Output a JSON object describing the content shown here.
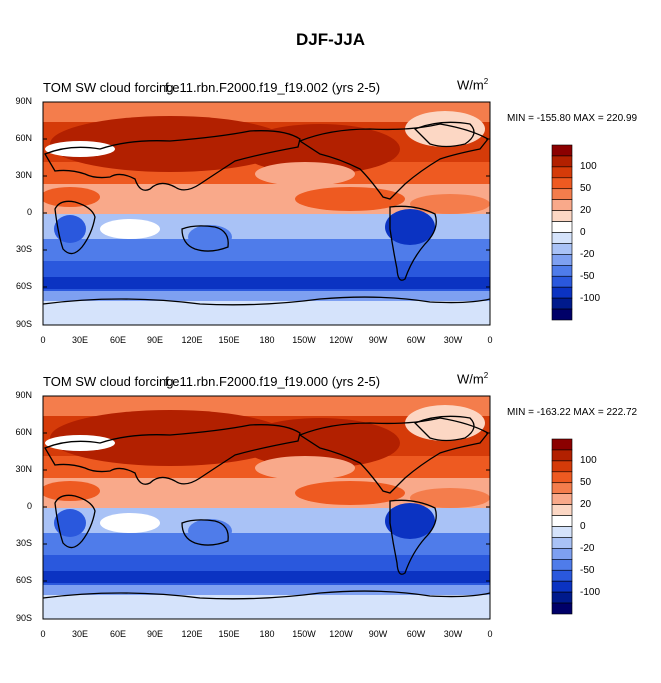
{
  "figure": {
    "title": "DJF-JJA"
  },
  "panels": [
    {
      "left_title": "TOM SW cloud forcing",
      "center_title": "f.e11.rbn.F2000.f19_f19.002 (yrs 2-5)",
      "units": "W/m",
      "units_sup": "2",
      "minmax": "MIN = -155.80 MAX = 220.99"
    },
    {
      "left_title": "TOM SW cloud forcing",
      "center_title": "f.e11.rbn.F2000.f19_f19.000 (yrs 2-5)",
      "units": "W/m",
      "units_sup": "2",
      "minmax": "MIN = -163.22 MAX = 222.72"
    }
  ],
  "axes": {
    "lat_labels": [
      "90N",
      "60N",
      "30N",
      "0",
      "30S",
      "60S",
      "90S"
    ],
    "lon_labels": [
      "0",
      "30E",
      "60E",
      "90E",
      "120E",
      "150E",
      "180",
      "150W",
      "120W",
      "90W",
      "60W",
      "30W",
      "0"
    ]
  },
  "colorbar": {
    "labels": [
      "100",
      "50",
      "20",
      "0",
      "-20",
      "-50",
      "-100"
    ],
    "colors": [
      "#8b0000",
      "#b22000",
      "#d53b09",
      "#ee5a21",
      "#f47d4c",
      "#f9a98a",
      "#fcd7c4",
      "#ffffff",
      "#d5e3fb",
      "#a9c2f6",
      "#7ea0f1",
      "#4f7cea",
      "#2a58dd",
      "#0b33c2",
      "#001a8c",
      "#000068"
    ]
  }
}
